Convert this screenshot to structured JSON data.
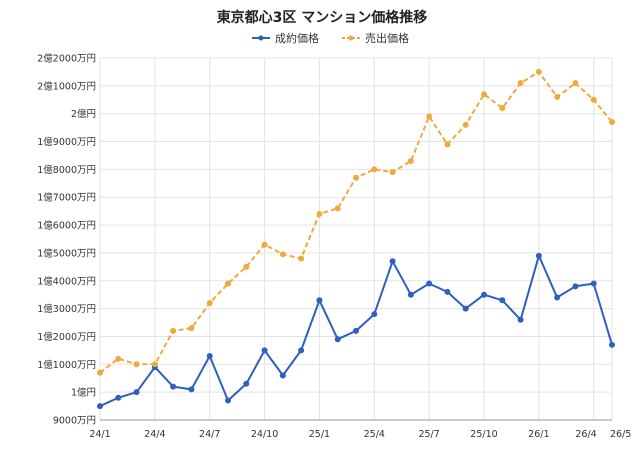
{
  "chart_data": {
    "type": "line",
    "title": "東京都心3区 マンション価格推移",
    "xlabel": "",
    "ylabel": "",
    "grid": true,
    "legend_position": "top",
    "x": [
      "24/1",
      "24/2",
      "24/3",
      "24/4",
      "24/5",
      "24/6",
      "24/7",
      "24/8",
      "24/9",
      "24/10",
      "24/11",
      "24/12",
      "25/1",
      "25/2",
      "25/3",
      "25/4",
      "25/5",
      "25/6",
      "25/7",
      "25/8",
      "25/9",
      "25/10",
      "25/11",
      "25/12",
      "26/1",
      "26/2",
      "26/3",
      "26/4",
      "26/5"
    ],
    "x_tick_labels": [
      {
        "index": 0,
        "label": "24/1"
      },
      {
        "index": 3,
        "label": "24/4"
      },
      {
        "index": 6,
        "label": "24/7"
      },
      {
        "index": 9,
        "label": "24/10"
      },
      {
        "index": 12,
        "label": "25/1"
      },
      {
        "index": 15,
        "label": "25/4"
      },
      {
        "index": 18,
        "label": "25/7"
      },
      {
        "index": 21,
        "label": "25/10"
      },
      {
        "index": 24,
        "label": "26/1"
      },
      {
        "index": 27,
        "label": "26/4"
      },
      {
        "index": 28,
        "label": "26/5"
      }
    ],
    "y_unit": "万円",
    "ylim": [
      9000,
      22000
    ],
    "y_ticks": [
      {
        "value": 22000,
        "label": "2億2000万円"
      },
      {
        "value": 21000,
        "label": "2億1000万円"
      },
      {
        "value": 20000,
        "label": "2億円"
      },
      {
        "value": 19000,
        "label": "1億9000万円"
      },
      {
        "value": 18000,
        "label": "1億8000万円"
      },
      {
        "value": 17000,
        "label": "1億7000万円"
      },
      {
        "value": 16000,
        "label": "1億6000万円"
      },
      {
        "value": 15000,
        "label": "1億5000万円"
      },
      {
        "value": 14000,
        "label": "1億4000万円"
      },
      {
        "value": 13000,
        "label": "1億3000万円"
      },
      {
        "value": 12000,
        "label": "1億2000万円"
      },
      {
        "value": 11000,
        "label": "1億1000万円"
      },
      {
        "value": 10000,
        "label": "1億円"
      },
      {
        "value": 9000,
        "label": "9000万円"
      }
    ],
    "series": [
      {
        "name": "成約価格",
        "color": "#2f5fbf",
        "style": "solid",
        "values": [
          9500,
          9800,
          10000,
          10900,
          10200,
          10100,
          11300,
          9700,
          10300,
          11500,
          10600,
          11500,
          13300,
          11900,
          12200,
          12800,
          14700,
          13500,
          13900,
          13600,
          13000,
          13500,
          13300,
          12600,
          14900,
          13400,
          13800,
          13900,
          11700
        ]
      },
      {
        "name": "売出価格",
        "color": "#eeaa3c",
        "style": "dashed",
        "values": [
          10700,
          11200,
          11000,
          11000,
          12200,
          12300,
          13200,
          13900,
          14500,
          15300,
          14950,
          14800,
          16400,
          16600,
          17700,
          18000,
          17900,
          18300,
          19900,
          18900,
          19600,
          20700,
          20200,
          21100,
          21500,
          20600,
          21100,
          20500,
          19700
        ]
      }
    ]
  }
}
